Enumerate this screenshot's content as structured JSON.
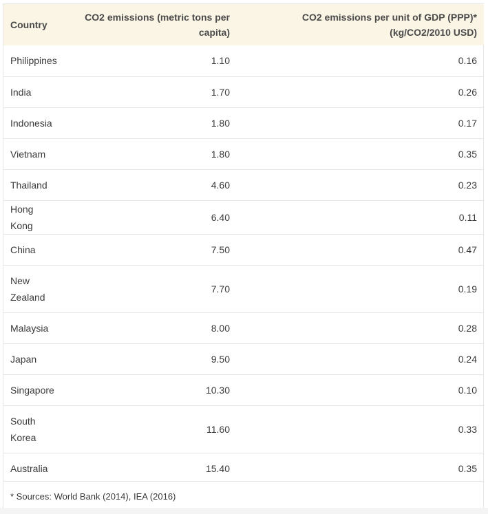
{
  "table": {
    "headers": {
      "country": "Country",
      "capita_line1": "CO2 emissions (metric tons per",
      "capita_line2": "capita)",
      "gdp_line1": "CO2 emissions per unit of GDP (PPP)*",
      "gdp_line2": "(kg/CO2/2010 USD)"
    },
    "rows": [
      {
        "country_l1": "Philippines",
        "country_l2": "",
        "capita": "1.10",
        "gdp": "0.16"
      },
      {
        "country_l1": "India",
        "country_l2": "",
        "capita": "1.70",
        "gdp": "0.26"
      },
      {
        "country_l1": "Indonesia",
        "country_l2": "",
        "capita": "1.80",
        "gdp": "0.17"
      },
      {
        "country_l1": "Vietnam",
        "country_l2": "",
        "capita": "1.80",
        "gdp": "0.35"
      },
      {
        "country_l1": "Thailand",
        "country_l2": "",
        "capita": "4.60",
        "gdp": "0.23"
      },
      {
        "country_l1": "Hong Kong",
        "country_l2": "",
        "capita": "6.40",
        "gdp": "0.11"
      },
      {
        "country_l1": "China",
        "country_l2": "",
        "capita": "7.50",
        "gdp": "0.47"
      },
      {
        "country_l1": "New",
        "country_l2": "Zealand",
        "capita": "7.70",
        "gdp": "0.19"
      },
      {
        "country_l1": "Malaysia",
        "country_l2": "",
        "capita": "8.00",
        "gdp": "0.28"
      },
      {
        "country_l1": "Japan",
        "country_l2": "",
        "capita": "9.50",
        "gdp": "0.24"
      },
      {
        "country_l1": "Singapore",
        "country_l2": "",
        "capita": "10.30",
        "gdp": "0.10"
      },
      {
        "country_l1": "South",
        "country_l2": "Korea",
        "capita": "11.60",
        "gdp": "0.33"
      },
      {
        "country_l1": "Australia",
        "country_l2": "",
        "capita": "15.40",
        "gdp": "0.35"
      }
    ]
  },
  "footer": {
    "note": "* Sources: World Bank (2014), IEA (2016)"
  },
  "colors": {
    "header_bg": "#fbf5e6",
    "row_border": "#e4e4e4",
    "text": "#3a3a3a"
  }
}
